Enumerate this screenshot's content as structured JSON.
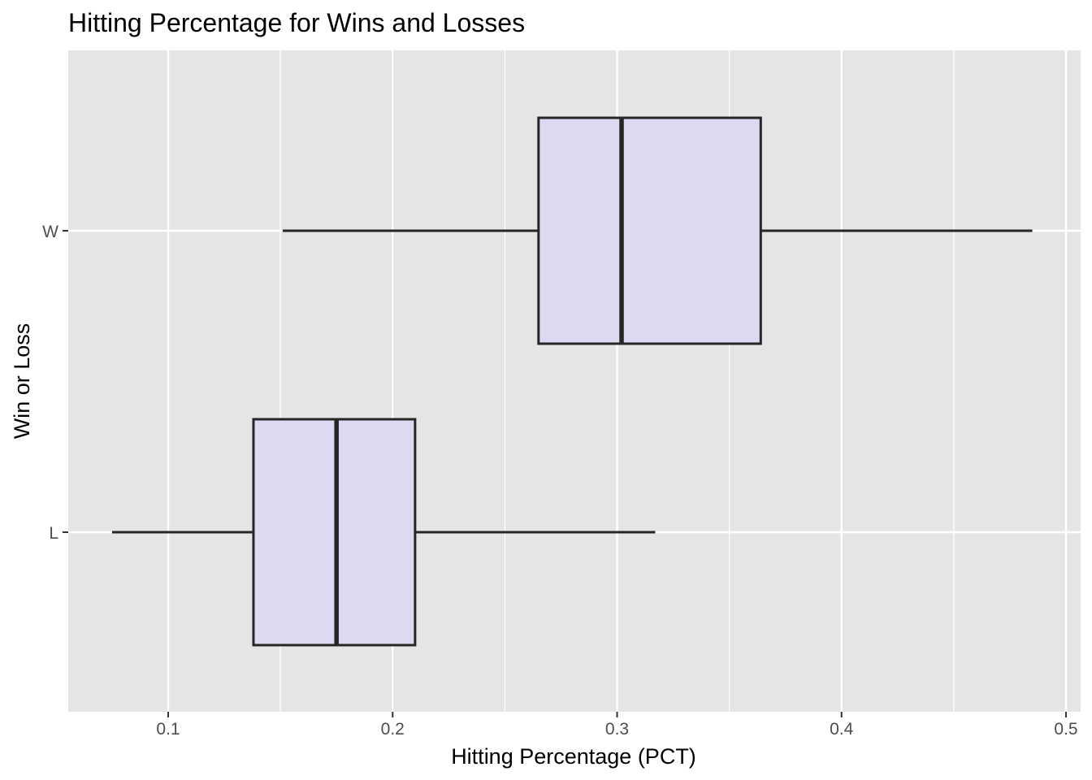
{
  "chart_data": {
    "type": "boxplot",
    "orientation": "horizontal",
    "title": "Hitting Percentage for Wins and Losses",
    "xlabel": "Hitting Percentage (PCT)",
    "ylabel": "Win or Loss",
    "xlim": [
      0.056,
      0.5
    ],
    "x_ticks": [
      0.1,
      0.2,
      0.3,
      0.4,
      0.5
    ],
    "x_tick_labels": [
      "0.1",
      "0.2",
      "0.3",
      "0.4",
      "0.5"
    ],
    "categories": [
      "L",
      "W"
    ],
    "boxes": [
      {
        "category": "L",
        "whisker_low": 0.075,
        "q1": 0.138,
        "median": 0.175,
        "q3": 0.21,
        "whisker_high": 0.317
      },
      {
        "category": "W",
        "whisker_low": 0.151,
        "q1": 0.265,
        "median": 0.302,
        "q3": 0.364,
        "whisker_high": 0.485
      }
    ],
    "grid": true,
    "legend": "none",
    "colors": {
      "panel_background": "#e5e5e5",
      "grid_major": "#ffffff",
      "grid_minor": "#f2f2f2",
      "box_fill": "#dcd9f1",
      "box_stroke": "#262626",
      "tick_text": "#4d4d4d"
    }
  }
}
